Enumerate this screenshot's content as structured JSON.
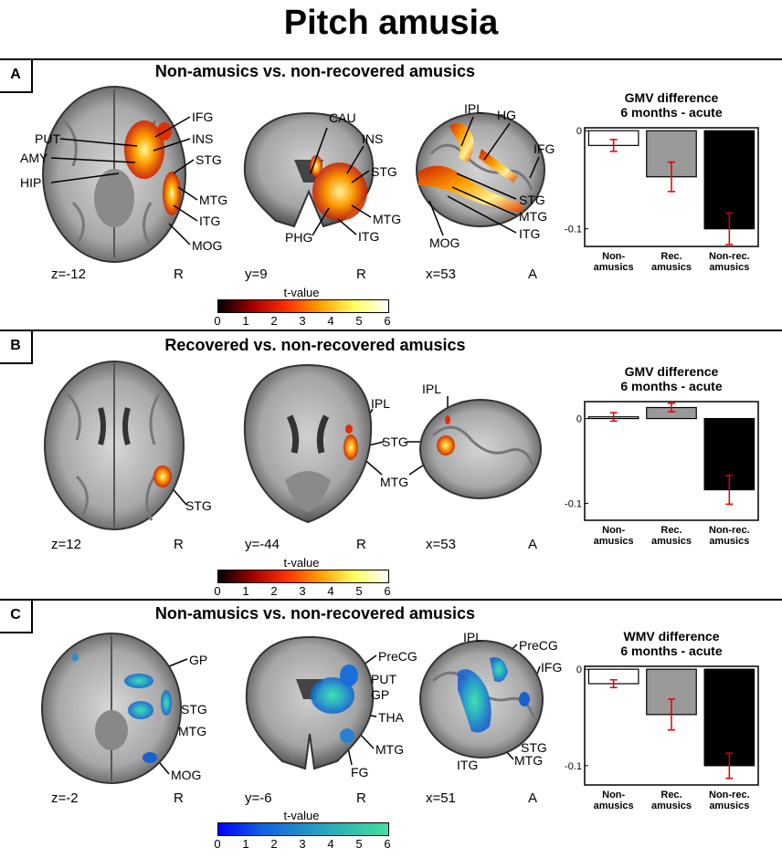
{
  "figure": {
    "title": "Pitch amusia"
  },
  "panels": [
    {
      "letter": "A",
      "title": "Non-amusics vs. non-recovered amusics",
      "colormap": "hot",
      "views": [
        {
          "coord": "z=-12",
          "side": "R",
          "labels": [
            "PUT",
            "AMY",
            "HIP",
            "IFG",
            "INS",
            "STG",
            "MTG",
            "ITG",
            "MOG"
          ]
        },
        {
          "coord": "y=9",
          "side": "R",
          "labels": [
            "CAU",
            "INS",
            "STG",
            "MTG",
            "ITG",
            "PHG"
          ]
        },
        {
          "coord": "x=53",
          "side": "A",
          "labels": [
            "IPL",
            "HG",
            "IFG",
            "STG",
            "MTG",
            "ITG",
            "MOG"
          ]
        }
      ],
      "colorbar": {
        "title": "t-value",
        "ticks": [
          "0",
          "1",
          "2",
          "3",
          "4",
          "5",
          "6"
        ]
      }
    },
    {
      "letter": "B",
      "title": "Recovered vs. non-recovered amusics",
      "colormap": "hot",
      "views": [
        {
          "coord": "z=12",
          "side": "R",
          "labels": [
            "STG"
          ]
        },
        {
          "coord": "y=-44",
          "side": "R",
          "labels": [
            "IPL",
            "STG",
            "MTG"
          ]
        },
        {
          "coord": "x=53",
          "side": "A",
          "labels": [
            "IPL"
          ]
        }
      ],
      "colorbar": {
        "title": "t-value",
        "ticks": [
          "0",
          "1",
          "2",
          "3",
          "4",
          "5",
          "6"
        ]
      }
    },
    {
      "letter": "C",
      "title": "Non-amusics vs. non-recovered amusics",
      "colormap": "winter",
      "views": [
        {
          "coord": "z=-2",
          "side": "R",
          "labels": [
            "GP",
            "STG",
            "MTG",
            "MOG"
          ]
        },
        {
          "coord": "y=-6",
          "side": "R",
          "labels": [
            "PreCG",
            "PUT",
            "GP",
            "THA",
            "MTG",
            "FG"
          ]
        },
        {
          "coord": "x=51",
          "side": "A",
          "labels": [
            "IPL",
            "PreCG",
            "IFG",
            "STG",
            "MTG",
            "ITG"
          ]
        }
      ],
      "colorbar": {
        "title": "t-value",
        "ticks": [
          "0",
          "1",
          "2",
          "3",
          "4",
          "5",
          "6"
        ]
      }
    }
  ],
  "chart_data": [
    {
      "type": "bar",
      "title": "GMV difference\n6 months - acute",
      "categories": [
        "Non-\namusics",
        "Rec.\namusics",
        "Non-rec.\namusics"
      ],
      "values": [
        -0.015,
        -0.047,
        -0.1
      ],
      "errors": [
        0.006,
        0.015,
        0.016
      ],
      "bar_colors": [
        "#ffffff",
        "#999999",
        "#000000"
      ],
      "error_color": "#e00000",
      "yticks": [
        "0",
        "-0.1"
      ],
      "ylim": [
        -0.118,
        0.003
      ]
    },
    {
      "type": "bar",
      "title": "GMV difference\n6 months - acute",
      "categories": [
        "Non-\namusics",
        "Rec.\namusics",
        "Non-rec.\namusics"
      ],
      "values": [
        0.002,
        0.013,
        -0.084
      ],
      "errors": [
        0.005,
        0.005,
        0.017
      ],
      "bar_colors": [
        "#ffffff",
        "#999999",
        "#000000"
      ],
      "error_color": "#e00000",
      "yticks": [
        "0",
        "-0.1"
      ],
      "ylim": [
        -0.12,
        0.02
      ]
    },
    {
      "type": "bar",
      "title": "WMV difference\n6 months - acute",
      "categories": [
        "Non-\namusics",
        "Rec.\namusics",
        "Non-rec.\namusics"
      ],
      "values": [
        -0.015,
        -0.047,
        -0.1
      ],
      "errors": [
        0.004,
        0.016,
        0.013
      ],
      "bar_colors": [
        "#ffffff",
        "#999999",
        "#000000"
      ],
      "error_color": "#e00000",
      "yticks": [
        "0",
        "-0.1"
      ],
      "ylim": [
        -0.12,
        0.003
      ]
    }
  ]
}
